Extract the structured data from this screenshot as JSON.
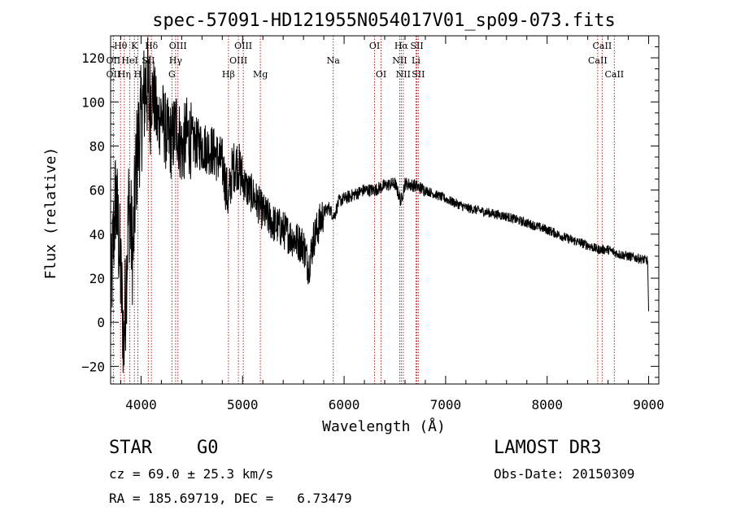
{
  "chart_data": {
    "type": "line",
    "title": "spec-57091-HD121955N054017V01_sp09-073.fits",
    "xlabel": "Wavelength (Å)",
    "ylabel": "Flux (relative)",
    "xlim": [
      3700,
      9100
    ],
    "ylim": [
      -28,
      130
    ],
    "xticks": [
      4000,
      5000,
      6000,
      7000,
      8000,
      9000
    ],
    "yticks": [
      -20,
      0,
      20,
      40,
      60,
      80,
      100,
      120
    ],
    "line_color": "#000000",
    "marker_color": "#b22222",
    "lines": [
      {
        "label": "Hθ",
        "wave": 3798,
        "row": 0
      },
      {
        "label": "OII",
        "wave": 3727,
        "row": 1
      },
      {
        "label": "OII",
        "wave": 3727,
        "row": 2
      },
      {
        "label": "Hη",
        "wave": 3835,
        "row": 2
      },
      {
        "label": "HeI",
        "wave": 3889,
        "row": 1
      },
      {
        "label": "K",
        "wave": 3934,
        "row": 0
      },
      {
        "label": "H",
        "wave": 3968,
        "row": 2
      },
      {
        "label": "SII",
        "wave": 4071,
        "row": 1
      },
      {
        "label": "Hδ",
        "wave": 4102,
        "row": 0
      },
      {
        "label": "OIII",
        "wave": 4363,
        "row": 0
      },
      {
        "label": "Hγ",
        "wave": 4340,
        "row": 1
      },
      {
        "label": "G",
        "wave": 4304,
        "row": 2
      },
      {
        "label": "Hβ",
        "wave": 4861,
        "row": 2
      },
      {
        "label": "OIII",
        "wave": 5007,
        "row": 0
      },
      {
        "label": "OIII",
        "wave": 4959,
        "row": 1
      },
      {
        "label": "Mg",
        "wave": 5175,
        "row": 2
      },
      {
        "label": "Na",
        "wave": 5893,
        "row": 1
      },
      {
        "label": "OI",
        "wave": 6300,
        "row": 0
      },
      {
        "label": "OI",
        "wave": 6364,
        "row": 2
      },
      {
        "label": "Hα",
        "wave": 6563,
        "row": 0
      },
      {
        "label": "NII",
        "wave": 6548,
        "row": 1
      },
      {
        "label": "NII",
        "wave": 6583,
        "row": 2
      },
      {
        "label": "SII",
        "wave": 6717,
        "row": 0
      },
      {
        "label": "Li",
        "wave": 6708,
        "row": 1
      },
      {
        "label": "SII",
        "wave": 6731,
        "row": 2
      },
      {
        "label": "CaII",
        "wave": 8542,
        "row": 0
      },
      {
        "label": "CaII",
        "wave": 8498,
        "row": 1
      },
      {
        "label": "CaII",
        "wave": 8662,
        "row": 2
      }
    ],
    "anchors": [
      [
        3700,
        5
      ],
      [
        3720,
        30
      ],
      [
        3750,
        58
      ],
      [
        3780,
        38
      ],
      [
        3810,
        12
      ],
      [
        3830,
        -10
      ],
      [
        3850,
        15
      ],
      [
        3880,
        55
      ],
      [
        3920,
        30
      ],
      [
        3950,
        70
      ],
      [
        3980,
        85
      ],
      [
        4010,
        95
      ],
      [
        4050,
        110
      ],
      [
        4080,
        100
      ],
      [
        4120,
        105
      ],
      [
        4160,
        90
      ],
      [
        4200,
        95
      ],
      [
        4250,
        85
      ],
      [
        4300,
        82
      ],
      [
        4350,
        90
      ],
      [
        4400,
        78
      ],
      [
        4450,
        85
      ],
      [
        4500,
        82
      ],
      [
        4600,
        80
      ],
      [
        4700,
        78
      ],
      [
        4800,
        72
      ],
      [
        4860,
        55
      ],
      [
        4900,
        70
      ],
      [
        4950,
        72
      ],
      [
        5000,
        65
      ],
      [
        5050,
        60
      ],
      [
        5100,
        58
      ],
      [
        5200,
        50
      ],
      [
        5300,
        45
      ],
      [
        5400,
        42
      ],
      [
        5500,
        38
      ],
      [
        5600,
        35
      ],
      [
        5650,
        25
      ],
      [
        5700,
        38
      ],
      [
        5800,
        50
      ],
      [
        5850,
        52
      ],
      [
        5900,
        48
      ],
      [
        5950,
        55
      ],
      [
        6000,
        56
      ],
      [
        6100,
        58
      ],
      [
        6200,
        60
      ],
      [
        6300,
        60
      ],
      [
        6400,
        62
      ],
      [
        6500,
        63
      ],
      [
        6560,
        55
      ],
      [
        6600,
        63
      ],
      [
        6700,
        62
      ],
      [
        6800,
        60
      ],
      [
        6900,
        58
      ],
      [
        7000,
        56
      ],
      [
        7200,
        52
      ],
      [
        7400,
        50
      ],
      [
        7600,
        48
      ],
      [
        7800,
        45
      ],
      [
        8000,
        42
      ],
      [
        8200,
        38
      ],
      [
        8400,
        35
      ],
      [
        8500,
        33
      ],
      [
        8600,
        33
      ],
      [
        8700,
        31
      ],
      [
        8800,
        30
      ],
      [
        8900,
        29
      ],
      [
        8990,
        28
      ],
      [
        9000,
        5
      ]
    ]
  },
  "info": {
    "object_type": "STAR",
    "subclass": "G0",
    "survey": "LAMOST DR3",
    "cz": "cz = 69.0 ± 25.3 km/s",
    "obs_date": "Obs-Date: 20150309",
    "coords": "RA = 185.69719, DEC =   6.73479"
  }
}
